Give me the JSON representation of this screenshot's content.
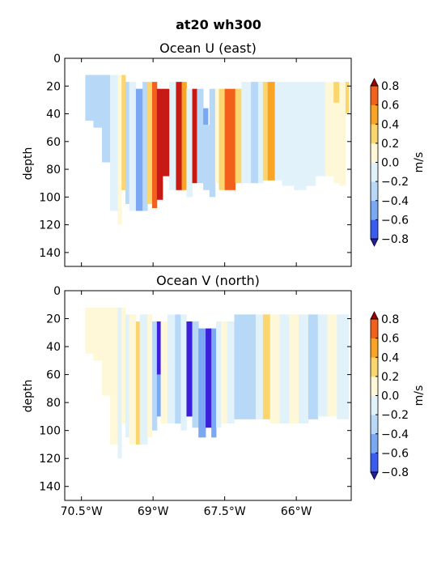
{
  "figure": {
    "suptitle": "at20 wh300"
  },
  "colormap": {
    "levels": [
      -0.8,
      -0.6,
      -0.4,
      -0.2,
      0.0,
      0.2,
      0.4,
      0.6,
      0.8
    ],
    "colors": [
      "#3b1fd9",
      "#3a5cf0",
      "#7aa8f2",
      "#b8d8f8",
      "#e2f2fb",
      "#fff8d8",
      "#fbd56e",
      "#f9a424",
      "#f2601c",
      "#c71a14"
    ],
    "under_color": "#2a1aa8",
    "over_color": "#a00000"
  },
  "chart_data": [
    {
      "type": "heatmap",
      "title": "Ocean U (east)",
      "ylabel": "depth",
      "xlim": [
        -70.85,
        -64.85
      ],
      "ylim": [
        150,
        0
      ],
      "y_ticks": [
        0,
        20,
        40,
        60,
        80,
        100,
        120,
        140
      ],
      "y_tick_labels": [
        "0",
        "20",
        "40",
        "60",
        "80",
        "100",
        "120",
        "140"
      ],
      "x_ticks": [
        -70.5,
        -69.0,
        -67.5,
        -66.0
      ],
      "x_tick_labels": [],
      "colorbar": {
        "label": "m/s",
        "ticks": [
          -0.8,
          -0.6,
          -0.4,
          -0.2,
          0.0,
          0.2,
          0.4,
          0.6,
          0.8
        ],
        "tick_labels": [
          "−0.8",
          "−0.6",
          "−0.4",
          "−0.2",
          "0.0",
          "0.2",
          "0.4",
          "0.6",
          "0.8"
        ]
      },
      "columns": [
        {
          "x0": -70.42,
          "x1": -70.25,
          "top": 12,
          "bottom": 45,
          "value": -0.3
        },
        {
          "x0": -70.25,
          "x1": -70.07,
          "top": 12,
          "bottom": 50,
          "value": -0.25
        },
        {
          "x0": -70.07,
          "x1": -69.9,
          "top": 12,
          "bottom": 75,
          "value": -0.3
        },
        {
          "x0": -69.9,
          "x1": -69.74,
          "top": 12,
          "bottom": 110,
          "value": -0.1
        },
        {
          "x0": -69.74,
          "x1": -69.66,
          "top": 12,
          "bottom": 120,
          "value": 0.05
        },
        {
          "x0": -69.66,
          "x1": -69.58,
          "top": 12,
          "bottom": 95,
          "value": 0.3
        },
        {
          "x0": -69.58,
          "x1": -69.5,
          "top": 17,
          "bottom": 105,
          "value": -0.3
        },
        {
          "x0": -69.5,
          "x1": -69.36,
          "top": 17,
          "bottom": 110,
          "value": -0.1
        },
        {
          "x0": -69.36,
          "x1": -69.22,
          "top": 22,
          "bottom": 110,
          "value": -0.5
        },
        {
          "x0": -69.22,
          "x1": -69.12,
          "top": 17,
          "bottom": 110,
          "value": -0.25
        },
        {
          "x0": -69.12,
          "x1": -69.02,
          "top": 17,
          "bottom": 105,
          "value": 0.3
        },
        {
          "x0": -69.02,
          "x1": -68.92,
          "top": 17,
          "bottom": 108,
          "value": 0.65
        },
        {
          "x0": -68.92,
          "x1": -68.8,
          "top": 22,
          "bottom": 102,
          "value": 0.85
        },
        {
          "x0": -68.8,
          "x1": -68.66,
          "top": 22,
          "bottom": 85,
          "value": 0.85
        },
        {
          "x0": -68.66,
          "x1": -68.52,
          "top": 17,
          "bottom": 95,
          "value": -0.15
        },
        {
          "x0": -68.52,
          "x1": -68.4,
          "top": 17,
          "bottom": 95,
          "value": 0.85
        },
        {
          "x0": -68.4,
          "x1": -68.3,
          "top": 17,
          "bottom": 95,
          "value": 0.4
        },
        {
          "x0": -68.3,
          "x1": -68.18,
          "top": 22,
          "bottom": 100,
          "value": -0.1
        },
        {
          "x0": -68.18,
          "x1": -68.08,
          "top": 22,
          "bottom": 90,
          "value": 0.85
        },
        {
          "x0": -68.08,
          "x1": -67.95,
          "top": 22,
          "bottom": 90,
          "value": -0.3
        },
        {
          "x0": -67.95,
          "x1": -67.85,
          "top": 36,
          "bottom": 48,
          "value": -0.5
        },
        {
          "x0": -67.95,
          "x1": -67.82,
          "top": 48,
          "bottom": 95,
          "value": -0.3
        },
        {
          "x0": -67.82,
          "x1": -67.7,
          "top": 22,
          "bottom": 100,
          "value": -0.25
        },
        {
          "x0": -67.7,
          "x1": -67.62,
          "top": 22,
          "bottom": 90,
          "value": 0.05
        },
        {
          "x0": -67.62,
          "x1": -67.5,
          "top": 22,
          "bottom": 95,
          "value": 0.3
        },
        {
          "x0": -67.5,
          "x1": -67.28,
          "top": 22,
          "bottom": 95,
          "value": 0.7
        },
        {
          "x0": -67.28,
          "x1": -67.15,
          "top": 22,
          "bottom": 90,
          "value": 0.3
        },
        {
          "x0": -67.15,
          "x1": -66.95,
          "top": 17,
          "bottom": 90,
          "value": -0.1
        },
        {
          "x0": -66.95,
          "x1": -66.8,
          "top": 17,
          "bottom": 90,
          "value": -0.25
        },
        {
          "x0": -66.8,
          "x1": -66.7,
          "top": 17,
          "bottom": 90,
          "value": -0.1
        },
        {
          "x0": -66.7,
          "x1": -66.6,
          "top": 17,
          "bottom": 88,
          "value": 0.3
        },
        {
          "x0": -66.6,
          "x1": -66.45,
          "top": 17,
          "bottom": 88,
          "value": 0.55
        },
        {
          "x0": -66.45,
          "x1": -66.3,
          "top": 17,
          "bottom": 88,
          "value": -0.1
        },
        {
          "x0": -66.3,
          "x1": -66.05,
          "top": 17,
          "bottom": 92,
          "value": -0.1
        },
        {
          "x0": -66.05,
          "x1": -65.8,
          "top": 17,
          "bottom": 95,
          "value": -0.1
        },
        {
          "x0": -65.8,
          "x1": -65.6,
          "top": 17,
          "bottom": 92,
          "value": -0.1
        },
        {
          "x0": -65.6,
          "x1": -65.4,
          "top": 17,
          "bottom": 85,
          "value": -0.1
        },
        {
          "x0": -65.4,
          "x1": -65.22,
          "top": 17,
          "bottom": 85,
          "value": 0.05
        },
        {
          "x0": -65.22,
          "x1": -65.1,
          "top": 17,
          "bottom": 32,
          "value": 0.3
        },
        {
          "x0": -65.22,
          "x1": -65.1,
          "top": 32,
          "bottom": 90,
          "value": 0.05
        },
        {
          "x0": -65.1,
          "x1": -64.97,
          "top": 17,
          "bottom": 92,
          "value": 0.05
        },
        {
          "x0": -64.97,
          "x1": -64.9,
          "top": 17,
          "bottom": 40,
          "value": 0.3
        }
      ]
    },
    {
      "type": "heatmap",
      "title": "Ocean V (north)",
      "ylabel": "depth",
      "xlim": [
        -70.85,
        -64.85
      ],
      "ylim": [
        150,
        0
      ],
      "y_ticks": [
        0,
        20,
        40,
        60,
        80,
        100,
        120,
        140
      ],
      "y_tick_labels": [
        "0",
        "20",
        "40",
        "60",
        "80",
        "100",
        "120",
        "140"
      ],
      "x_ticks": [
        -70.5,
        -69.0,
        -67.5,
        -66.0
      ],
      "x_tick_labels": [
        "70.5°W",
        "69°W",
        "67.5°W",
        "66°W"
      ],
      "colorbar": {
        "label": "m/s",
        "ticks": [
          -0.8,
          -0.6,
          -0.4,
          -0.2,
          0.0,
          0.2,
          0.4,
          0.6,
          0.8
        ],
        "tick_labels": [
          "−0.8",
          "−0.6",
          "−0.4",
          "−0.2",
          "0.0",
          "0.2",
          "0.4",
          "0.6",
          "0.8"
        ]
      },
      "columns": [
        {
          "x0": -70.42,
          "x1": -70.25,
          "top": 12,
          "bottom": 45,
          "value": 0.05
        },
        {
          "x0": -70.25,
          "x1": -70.07,
          "top": 12,
          "bottom": 50,
          "value": 0.05
        },
        {
          "x0": -70.07,
          "x1": -69.9,
          "top": 12,
          "bottom": 75,
          "value": 0.05
        },
        {
          "x0": -69.9,
          "x1": -69.74,
          "top": 12,
          "bottom": 110,
          "value": 0.05
        },
        {
          "x0": -69.74,
          "x1": -69.66,
          "top": 12,
          "bottom": 120,
          "value": -0.1
        },
        {
          "x0": -69.66,
          "x1": -69.58,
          "top": 12,
          "bottom": 95,
          "value": 0.05
        },
        {
          "x0": -69.58,
          "x1": -69.5,
          "top": 17,
          "bottom": 105,
          "value": -0.1
        },
        {
          "x0": -69.5,
          "x1": -69.36,
          "top": 17,
          "bottom": 110,
          "value": 0.05
        },
        {
          "x0": -69.36,
          "x1": -69.28,
          "top": 22,
          "bottom": 110,
          "value": 0.3
        },
        {
          "x0": -69.28,
          "x1": -69.12,
          "top": 17,
          "bottom": 110,
          "value": -0.1
        },
        {
          "x0": -69.12,
          "x1": -69.02,
          "top": 17,
          "bottom": 105,
          "value": 0.05
        },
        {
          "x0": -69.02,
          "x1": -68.92,
          "top": 22,
          "bottom": 100,
          "value": -0.25
        },
        {
          "x0": -68.92,
          "x1": -68.84,
          "top": 22,
          "bottom": 60,
          "value": -0.85
        },
        {
          "x0": -68.92,
          "x1": -68.84,
          "top": 60,
          "bottom": 90,
          "value": -0.6
        },
        {
          "x0": -68.84,
          "x1": -68.7,
          "top": 22,
          "bottom": 95,
          "value": 0.05
        },
        {
          "x0": -68.7,
          "x1": -68.54,
          "top": 17,
          "bottom": 95,
          "value": -0.1
        },
        {
          "x0": -68.54,
          "x1": -68.42,
          "top": 17,
          "bottom": 95,
          "value": -0.25
        },
        {
          "x0": -68.42,
          "x1": -68.3,
          "top": 17,
          "bottom": 100,
          "value": -0.1
        },
        {
          "x0": -68.3,
          "x1": -68.18,
          "top": 22,
          "bottom": 90,
          "value": -0.85
        },
        {
          "x0": -68.18,
          "x1": -68.05,
          "top": 22,
          "bottom": 98,
          "value": -0.25
        },
        {
          "x0": -68.05,
          "x1": -67.9,
          "top": 27,
          "bottom": 105,
          "value": -0.6
        },
        {
          "x0": -67.9,
          "x1": -67.78,
          "top": 27,
          "bottom": 98,
          "value": -0.85
        },
        {
          "x0": -67.78,
          "x1": -67.68,
          "top": 27,
          "bottom": 105,
          "value": -0.6
        },
        {
          "x0": -67.68,
          "x1": -67.58,
          "top": 22,
          "bottom": 98,
          "value": -0.1
        },
        {
          "x0": -67.58,
          "x1": -67.45,
          "top": 22,
          "bottom": 95,
          "value": 0.05
        },
        {
          "x0": -67.45,
          "x1": -67.3,
          "top": 22,
          "bottom": 95,
          "value": -0.1
        },
        {
          "x0": -67.3,
          "x1": -67.15,
          "top": 17,
          "bottom": 92,
          "value": -0.25
        },
        {
          "x0": -67.15,
          "x1": -67.0,
          "top": 17,
          "bottom": 92,
          "value": -0.35
        },
        {
          "x0": -67.0,
          "x1": -66.85,
          "top": 17,
          "bottom": 92,
          "value": -0.25
        },
        {
          "x0": -66.85,
          "x1": -66.7,
          "top": 17,
          "bottom": 92,
          "value": -0.1
        },
        {
          "x0": -66.7,
          "x1": -66.55,
          "top": 17,
          "bottom": 92,
          "value": 0.3
        },
        {
          "x0": -66.55,
          "x1": -66.35,
          "top": 17,
          "bottom": 95,
          "value": 0.05
        },
        {
          "x0": -66.35,
          "x1": -66.15,
          "top": 17,
          "bottom": 95,
          "value": -0.1
        },
        {
          "x0": -66.15,
          "x1": -65.95,
          "top": 17,
          "bottom": 95,
          "value": 0.05
        },
        {
          "x0": -65.95,
          "x1": -65.75,
          "top": 17,
          "bottom": 95,
          "value": -0.1
        },
        {
          "x0": -65.75,
          "x1": -65.55,
          "top": 17,
          "bottom": 92,
          "value": -0.3
        },
        {
          "x0": -65.55,
          "x1": -65.35,
          "top": 17,
          "bottom": 90,
          "value": -0.1
        },
        {
          "x0": -65.35,
          "x1": -65.15,
          "top": 17,
          "bottom": 90,
          "value": 0.05
        },
        {
          "x0": -65.15,
          "x1": -64.9,
          "top": 17,
          "bottom": 92,
          "value": -0.1
        }
      ]
    }
  ]
}
